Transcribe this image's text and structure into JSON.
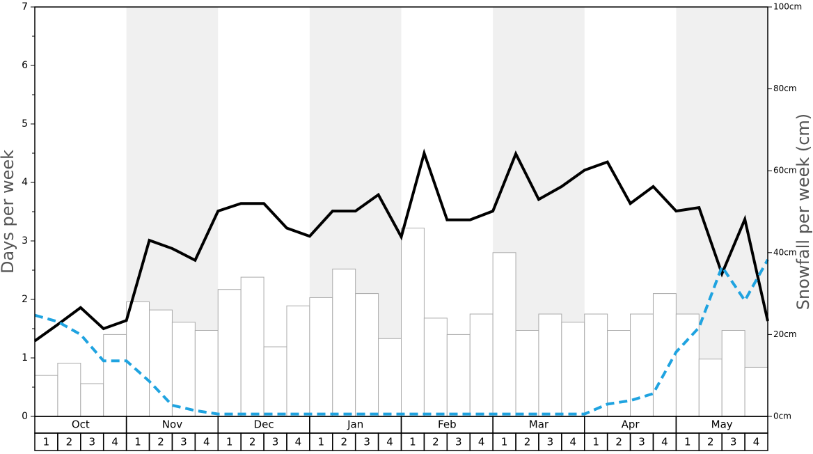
{
  "chart_data": {
    "type": "bar",
    "ylabel": "Days per week",
    "y2label": "Snowfall per week (cm)",
    "ylim": [
      0,
      7
    ],
    "yticks": [
      0,
      1,
      2,
      3,
      4,
      5,
      6,
      7
    ],
    "y2lim": [
      0,
      100
    ],
    "y2ticks": [
      {
        "value": 0,
        "label": "0cm"
      },
      {
        "value": 20,
        "label": "20cm"
      },
      {
        "value": 40,
        "label": "40cm"
      },
      {
        "value": 60,
        "label": "60cm"
      },
      {
        "value": 80,
        "label": "80cm"
      },
      {
        "value": 100,
        "label": "100cm"
      }
    ],
    "months": [
      "Oct",
      "Nov",
      "Dec",
      "Jan",
      "Feb",
      "Mar",
      "Apr",
      "May"
    ],
    "categories": [
      "1",
      "2",
      "3",
      "4",
      "1",
      "2",
      "3",
      "4",
      "1",
      "2",
      "3",
      "4",
      "1",
      "2",
      "3",
      "4",
      "1",
      "2",
      "3",
      "4",
      "1",
      "2",
      "3",
      "4",
      "1",
      "2",
      "3",
      "4",
      "1",
      "2",
      "3",
      "4"
    ],
    "bars": {
      "axis": "y2",
      "color": "#ffffff",
      "values": [
        10,
        13,
        8,
        20,
        28,
        26,
        23,
        21,
        31,
        34,
        17,
        27,
        29,
        36,
        30,
        19,
        46,
        24,
        20,
        25,
        40,
        21,
        25,
        23,
        25,
        21,
        25,
        30,
        25,
        14,
        21,
        12
      ]
    },
    "x": [
      0,
      1,
      2,
      3,
      4,
      5,
      6,
      7,
      8,
      9,
      10,
      11,
      12,
      13,
      14,
      15,
      16,
      17,
      18,
      19,
      20,
      21,
      22,
      23,
      24,
      25,
      26,
      27,
      28,
      29,
      30,
      31,
      32
    ],
    "series": [
      {
        "color": "#000000",
        "dashed": false,
        "values": [
          1.29,
          1.57,
          1.86,
          1.5,
          1.64,
          3.01,
          2.87,
          2.67,
          3.51,
          3.64,
          3.64,
          3.22,
          3.08,
          3.51,
          3.51,
          3.79,
          3.07,
          4.5,
          3.36,
          3.36,
          3.51,
          4.49,
          3.71,
          3.93,
          4.21,
          4.35,
          3.64,
          3.93,
          3.51,
          3.57,
          2.44,
          3.37,
          1.63
        ]
      },
      {
        "color": "#1fa3e0",
        "dashed": true,
        "values": [
          1.73,
          1.62,
          1.4,
          0.95,
          0.95,
          0.6,
          0.19,
          0.1,
          0.04,
          0.04,
          0.04,
          0.04,
          0.04,
          0.04,
          0.04,
          0.04,
          0.04,
          0.04,
          0.04,
          0.04,
          0.04,
          0.04,
          0.04,
          0.04,
          0.04,
          0.21,
          0.27,
          0.39,
          1.1,
          1.52,
          2.56,
          1.98,
          2.68
        ]
      }
    ]
  }
}
